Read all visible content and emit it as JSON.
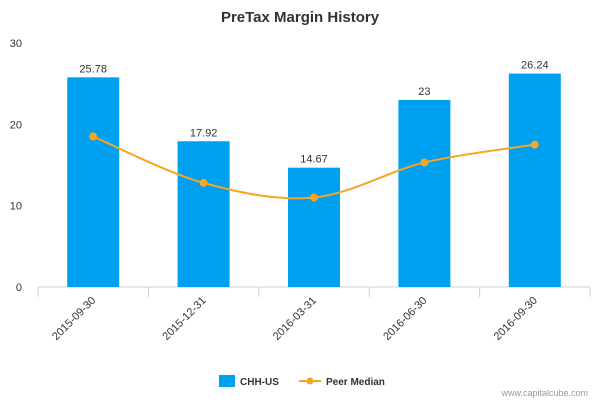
{
  "chart_data": {
    "type": "bar",
    "title": "PreTax Margin History",
    "categories": [
      "2015-09-30",
      "2015-12-31",
      "2016-03-31",
      "2016-06-30",
      "2016-09-30"
    ],
    "series": [
      {
        "name": "CHH-US",
        "kind": "bar",
        "color": "#00a0f0",
        "values": [
          25.78,
          17.92,
          14.67,
          23,
          26.24
        ],
        "labels": [
          "25.78",
          "17.92",
          "14.67",
          "23",
          "26.24"
        ]
      },
      {
        "name": "Peer Median",
        "kind": "line",
        "color": "#f5a623",
        "values": [
          18.5,
          12.8,
          11.0,
          15.3,
          17.5
        ]
      }
    ],
    "ylim": [
      0,
      30
    ],
    "yticks": [
      0,
      10,
      20,
      30
    ],
    "xlabel": "",
    "ylabel": "",
    "grid": false,
    "legend": "bottom-center"
  },
  "footer": {
    "source": "www.capitalcube.com"
  }
}
